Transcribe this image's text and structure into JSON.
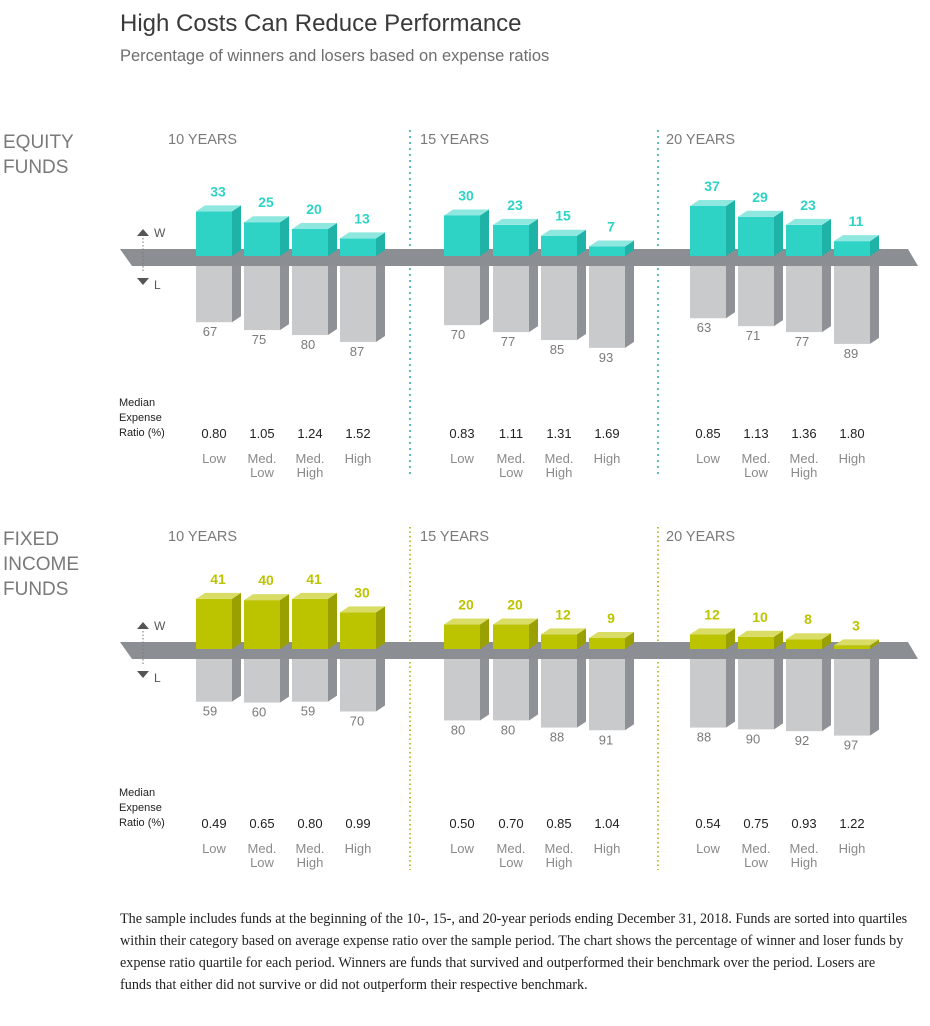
{
  "title": "High Costs Can Reduce Performance",
  "subtitle": "Percentage of winners and losers based on expense ratios",
  "note": "The sample includes funds at the beginning of the 10-, 15-, and 20-year periods ending December 31, 2018. Funds are sorted into quartiles within their category based on average expense ratio over the sample period. The chart shows the percentage of winner and loser funds by expense ratio quartile for each period. Winners are funds that survived and outperformed their benchmark over the period. Losers are funds that either did not survive or did not outperform their respective benchmark.",
  "colors": {
    "equity_front": "#2ed3c6",
    "equity_top": "#8fe8e0",
    "equity_side": "#1fb3a8",
    "fixed_front": "#bcc400",
    "fixed_top": "#d9dd66",
    "fixed_side": "#9aa000",
    "loser_front": "#c9cacc",
    "loser_side": "#8e9196",
    "band": "#8b8e93",
    "equity_divider": "#2aa9a0",
    "fixed_divider": "#a5ab00",
    "gray_text": "#7a7a7a"
  },
  "axis_labels": {
    "winner": "W",
    "loser": "L"
  },
  "expense_label": [
    "Median",
    "Expense",
    "Ratio (%)"
  ],
  "chart_data": [
    {
      "type": "bar",
      "section": [
        "EQUITY",
        "FUNDS"
      ],
      "categories": [
        [
          "Low"
        ],
        [
          "Med.",
          "Low"
        ],
        [
          "Med.",
          "High"
        ],
        [
          "High"
        ]
      ],
      "periods": [
        {
          "label": "10 YEARS",
          "winners": [
            33,
            25,
            20,
            13
          ],
          "losers": [
            67,
            75,
            80,
            87
          ],
          "expense_ratios": [
            "0.80",
            "1.05",
            "1.24",
            "1.52"
          ]
        },
        {
          "label": "15 YEARS",
          "winners": [
            30,
            23,
            15,
            7
          ],
          "losers": [
            70,
            77,
            85,
            93
          ],
          "expense_ratios": [
            "0.83",
            "1.11",
            "1.31",
            "1.69"
          ]
        },
        {
          "label": "20 YEARS",
          "winners": [
            37,
            29,
            23,
            11
          ],
          "losers": [
            63,
            71,
            77,
            89
          ],
          "expense_ratios": [
            "0.85",
            "1.13",
            "1.36",
            "1.80"
          ]
        }
      ]
    },
    {
      "type": "bar",
      "section": [
        "FIXED",
        "INCOME",
        "FUNDS"
      ],
      "categories": [
        [
          "Low"
        ],
        [
          "Med.",
          "Low"
        ],
        [
          "Med.",
          "High"
        ],
        [
          "High"
        ]
      ],
      "periods": [
        {
          "label": "10 YEARS",
          "winners": [
            41,
            40,
            41,
            30
          ],
          "losers": [
            59,
            60,
            59,
            70
          ],
          "expense_ratios": [
            "0.49",
            "0.65",
            "0.80",
            "0.99"
          ]
        },
        {
          "label": "15 YEARS",
          "winners": [
            20,
            20,
            12,
            9
          ],
          "losers": [
            80,
            80,
            88,
            91
          ],
          "expense_ratios": [
            "0.50",
            "0.70",
            "0.85",
            "1.04"
          ]
        },
        {
          "label": "20 YEARS",
          "winners": [
            12,
            10,
            8,
            3
          ],
          "losers": [
            88,
            90,
            92,
            97
          ],
          "expense_ratios": [
            "0.54",
            "0.75",
            "0.93",
            "1.22"
          ]
        }
      ]
    }
  ]
}
